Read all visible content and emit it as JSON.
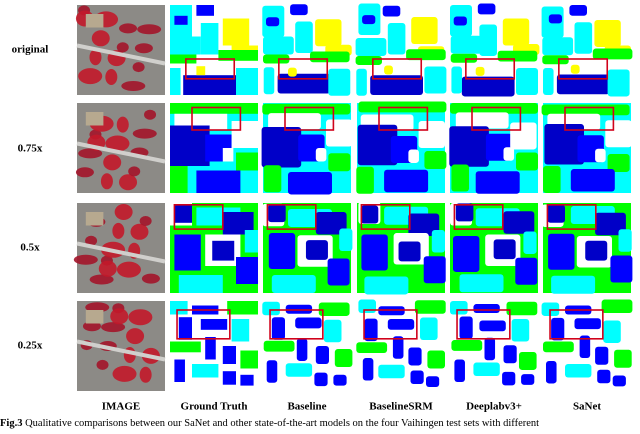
{
  "figure": {
    "row_labels": [
      "original",
      "0.75x",
      "0.5x",
      "0.25x"
    ],
    "column_labels": [
      "IMAGE",
      "Ground Truth",
      "Baseline",
      "BaselineSRM",
      "Deeplabv3+",
      "SaNet"
    ],
    "caption_label": "Fig.3",
    "caption_text": "Qualitative comparisons between our SaNet and other state-of-the-art models on the four Vaihingen test sets with different"
  }
}
